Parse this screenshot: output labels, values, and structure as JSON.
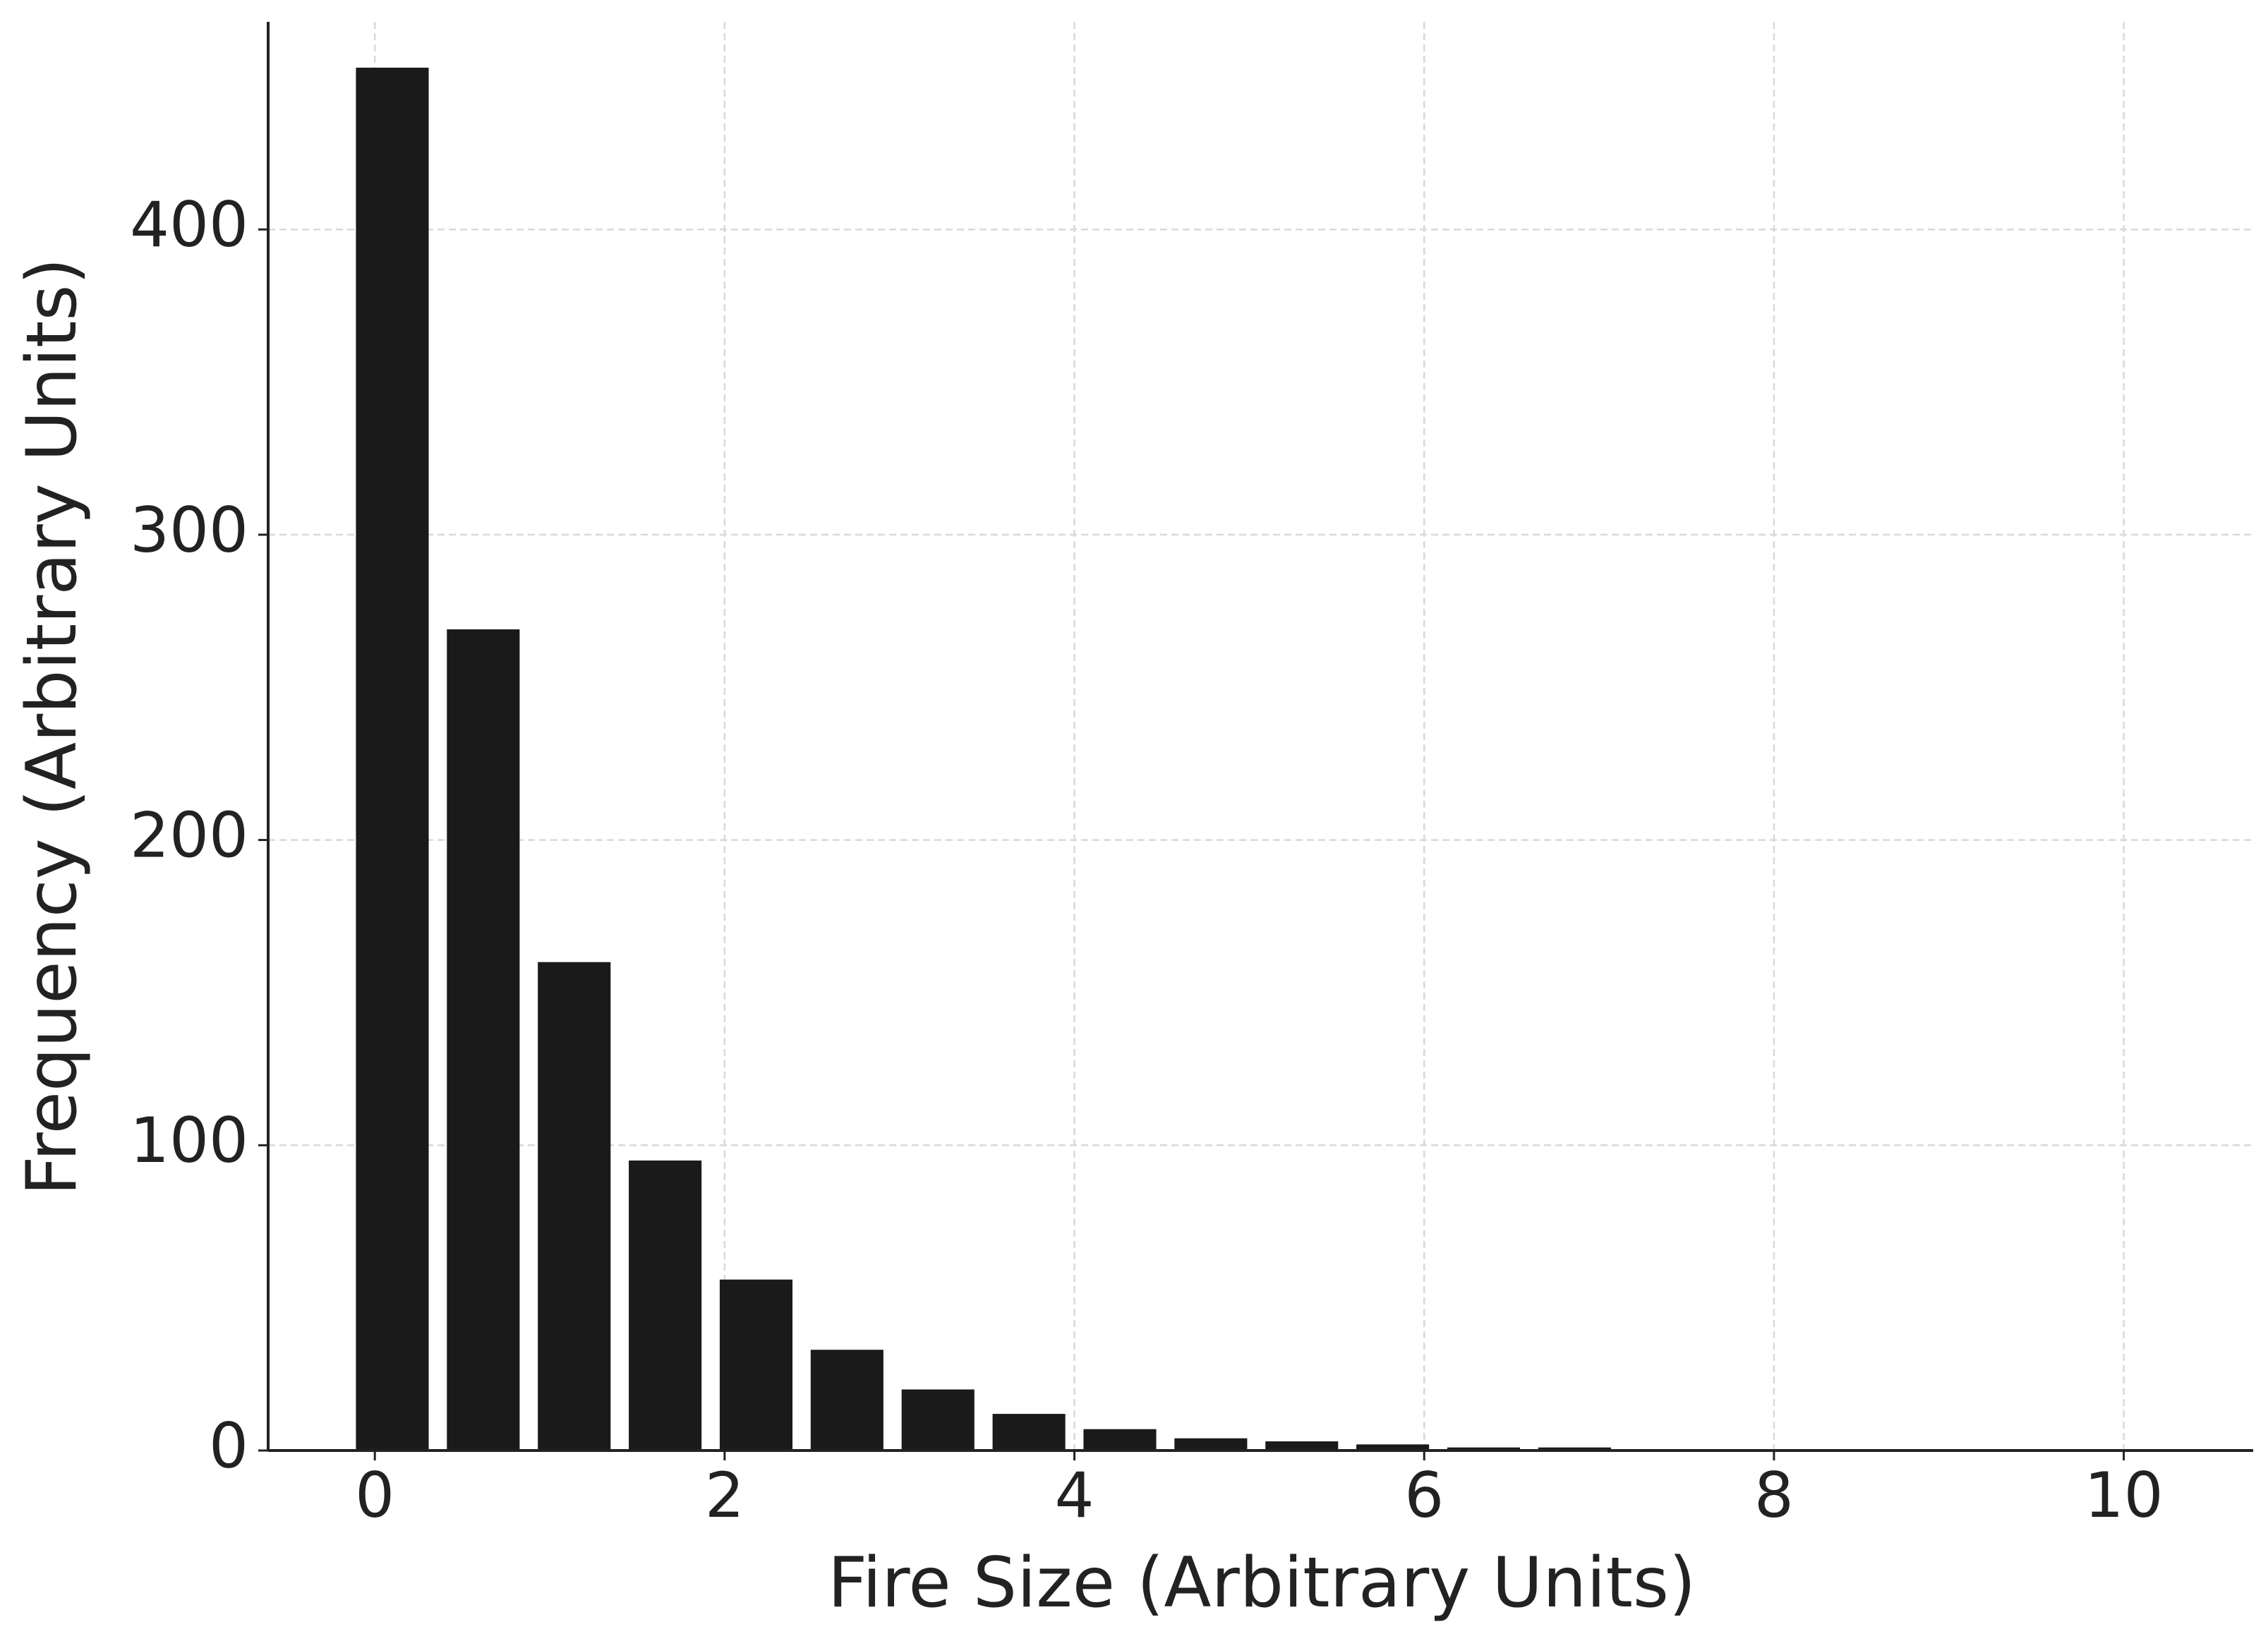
{
  "chart_data": {
    "type": "histogram",
    "xlabel": "Fire Size (Arbitrary Units)",
    "ylabel": "Frequency (Arbitrary Units)",
    "bins": [
      -0.16,
      0.36,
      0.88,
      1.4,
      1.92,
      2.44,
      2.96,
      3.48,
      4.0,
      4.52,
      5.04,
      5.56,
      6.08,
      6.6,
      7.12
    ],
    "values": [
      453,
      269,
      160,
      95,
      56,
      33,
      20,
      12,
      7,
      4,
      3,
      2,
      1,
      1
    ],
    "color": "#1a1a1a",
    "xlim": [
      -0.61,
      10.74
    ],
    "ylim": [
      0,
      468
    ],
    "xticks": [
      0,
      2,
      4,
      6,
      8,
      10
    ],
    "yticks": [
      0,
      100,
      200,
      300,
      400
    ],
    "grid": true
  }
}
